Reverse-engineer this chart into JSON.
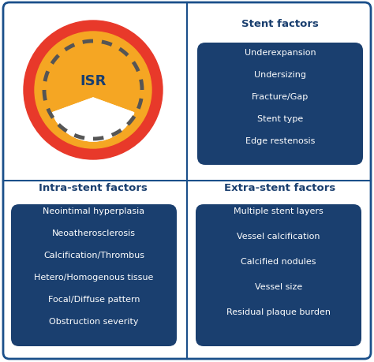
{
  "bg_color": "#ffffff",
  "border_color": "#1a4f8a",
  "grid_line_color": "#1a4f8a",
  "outer_border_color": "#1a4f8a",
  "stent_title": "Stent factors",
  "stent_items": [
    "Underexpansion",
    "Undersizing",
    "Fracture/Gap",
    "Stent type",
    "Edge restenosis"
  ],
  "intra_title": "Intra-stent factors",
  "intra_items": [
    "Neointimal hyperplasia",
    "Neoatherosclerosis",
    "Calcification/Thrombus",
    "Hetero/Homogenous tissue",
    "Focal/Diffuse pattern",
    "Obstruction severity"
  ],
  "extra_title": "Extra-stent factors",
  "extra_items": [
    "Multiple stent layers",
    "Vessel calcification",
    "Calcified nodules",
    "Vessel size",
    "Residual plaque burden"
  ],
  "box_bg_color": "#1a3f6f",
  "box_text_color": "#ffffff",
  "title_color": "#1a3f6f",
  "circle_red": "#e8392a",
  "circle_yellow": "#f5a623",
  "circle_dash_color": "#555555",
  "isr_text_color": "#1a3f6f",
  "title_fontsize": 9.5,
  "item_fontsize": 8.0
}
